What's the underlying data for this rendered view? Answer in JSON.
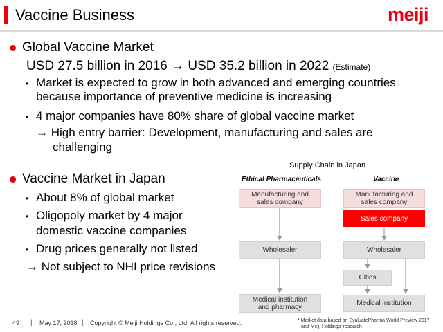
{
  "header": {
    "title": "Vaccine Business",
    "logo": "meiji"
  },
  "global": {
    "heading": "Global Vaccine Market",
    "market_size": "USD 27.5 billion in 2016 → USD 35.2 billion in 2022",
    "estimate": "(Estimate)",
    "bullets": [
      "Market is expected to grow in both advanced and emerging countries because importance of preventive medicine is increasing",
      "4 major companies have 80% share of global vaccine market"
    ],
    "arrow_line_1": "→ High entry barrier: Development, manufacturing and sales are",
    "arrow_line_2": "challenging"
  },
  "japan": {
    "heading": "Vaccine Market in Japan",
    "bullets": [
      "About 8% of global market",
      "Oligopoly market by 4 major",
      "domestic vaccine companies",
      "Drug prices generally not listed"
    ],
    "arrow_line": "→ Not subject to NHI price revisions"
  },
  "diagram": {
    "caption": "Supply Chain in Japan",
    "col_ethical": "Ethical Pharmaceuticals",
    "col_vaccine": "Vaccine",
    "ethical_manufacturing_1": "Manufacturing and",
    "ethical_manufacturing_2": "sales company",
    "ethical_wholesaler": "Wholesaler",
    "ethical_medical_1": "Medical institution",
    "ethical_medical_2": "and pharmacy",
    "vaccine_manufacturing_1": "Manufacturing and",
    "vaccine_manufacturing_2": "sales company",
    "vaccine_sales": "Sales company",
    "vaccine_wholesaler": "Wholesaler",
    "vaccine_cities": "Cities",
    "vaccine_medical": "Medical institution",
    "accent_color": "#ff0000"
  },
  "footer": {
    "page_number": "49",
    "date": "May 17, 2018",
    "copyright": "Copyright © Meiji Holdings Co., Ltd. All rights reserved.",
    "note_line_1": "* Market data based on EvaluatePharma World Preview 2017",
    "note_line_2": "and Meiji Holdings' research"
  },
  "colors": {
    "brand_red": "#e60012"
  }
}
